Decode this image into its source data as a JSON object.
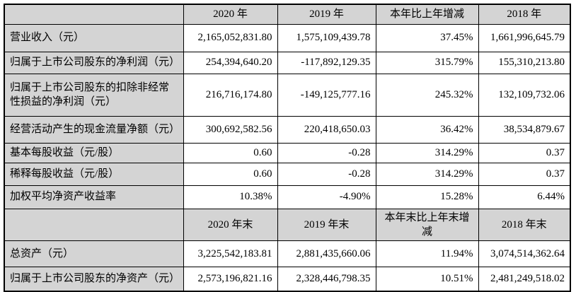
{
  "table": {
    "header1": {
      "corner": "",
      "cols": [
        "2020 年",
        "2019 年",
        "本年比上年增减",
        "2018 年"
      ]
    },
    "rows1": [
      {
        "label": "营业收入（元）",
        "v": [
          "2,165,052,831.80",
          "1,575,109,439.78",
          "37.45%",
          "1,661,996,645.79"
        ]
      },
      {
        "label": "归属于上市公司股东的净利润（元）",
        "v": [
          "254,394,640.20",
          "-117,892,129.35",
          "315.79%",
          "155,310,213.80"
        ]
      },
      {
        "label": "归属于上市公司股东的扣除非经常性损益的净利润（元）",
        "v": [
          "216,716,174.80",
          "-149,125,777.16",
          "245.32%",
          "132,109,732.06"
        ]
      },
      {
        "label": "经营活动产生的现金流量净额（元）",
        "v": [
          "300,692,582.56",
          "220,418,650.03",
          "36.42%",
          "38,534,879.67"
        ]
      },
      {
        "label": "基本每股收益（元/股）",
        "v": [
          "0.60",
          "-0.28",
          "314.29%",
          "0.37"
        ]
      },
      {
        "label": "稀释每股收益（元/股）",
        "v": [
          "0.60",
          "-0.28",
          "314.29%",
          "0.37"
        ]
      },
      {
        "label": "加权平均净资产收益率",
        "v": [
          "10.38%",
          "-4.90%",
          "15.28%",
          "6.44%"
        ]
      }
    ],
    "header2": {
      "corner": "",
      "cols": [
        "2020 年末",
        "2019 年末",
        "本年末比上年末增减",
        "2018 年末"
      ]
    },
    "rows2": [
      {
        "label": "总资产（元）",
        "v": [
          "3,225,542,183.81",
          "2,881,435,660.06",
          "11.94%",
          "3,074,514,362.64"
        ]
      },
      {
        "label": "归属于上市公司股东的净资产（元）",
        "v": [
          "2,573,196,821.16",
          "2,328,446,798.35",
          "10.51%",
          "2,481,249,518.02"
        ]
      }
    ],
    "colors": {
      "header_bg": "#d4d4d4",
      "border": "#000000"
    }
  }
}
